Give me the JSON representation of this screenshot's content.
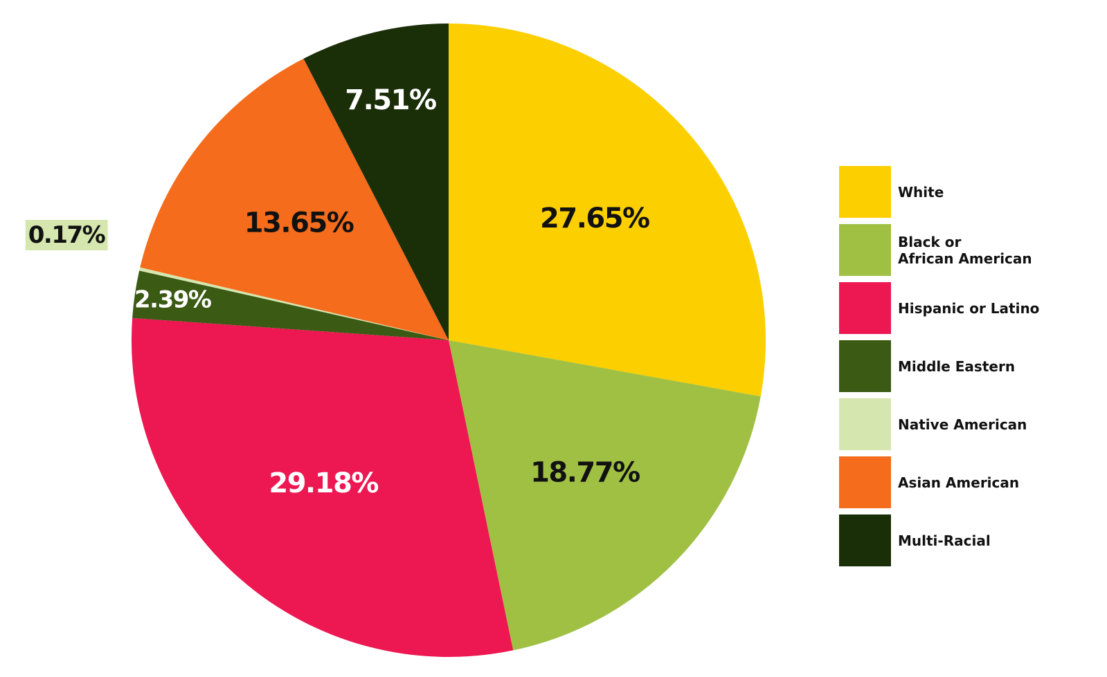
{
  "chart_data": {
    "type": "pie",
    "slices": [
      {
        "label": "White",
        "value": 27.65,
        "display": "27.65%",
        "color": "#FCCF00",
        "text_color": "#111111"
      },
      {
        "label": "Black or\nAfrican American",
        "value": 18.77,
        "display": "18.77%",
        "color": "#A0C044",
        "text_color": "#111111"
      },
      {
        "label": "Hispanic or Latino",
        "value": 29.18,
        "display": "29.18%",
        "color": "#ED1752",
        "text_color": "#ffffff"
      },
      {
        "label": "Middle Eastern",
        "value": 2.39,
        "display": "2.39%",
        "color": "#3B5A14",
        "text_color": "#ffffff"
      },
      {
        "label": "Native American",
        "value": 0.17,
        "display": "0.17%",
        "color": "#D5E7AF",
        "text_color": "#111111"
      },
      {
        "label": "Asian American",
        "value": 13.65,
        "display": "13.65%",
        "color": "#F46C1C",
        "text_color": "#111111"
      },
      {
        "label": "Multi-Racial",
        "value": 7.51,
        "display": "7.51%",
        "color": "#1A2E08",
        "text_color": "#ffffff"
      }
    ],
    "start": "12 o'clock",
    "direction": "clockwise",
    "legend_position": "right"
  }
}
